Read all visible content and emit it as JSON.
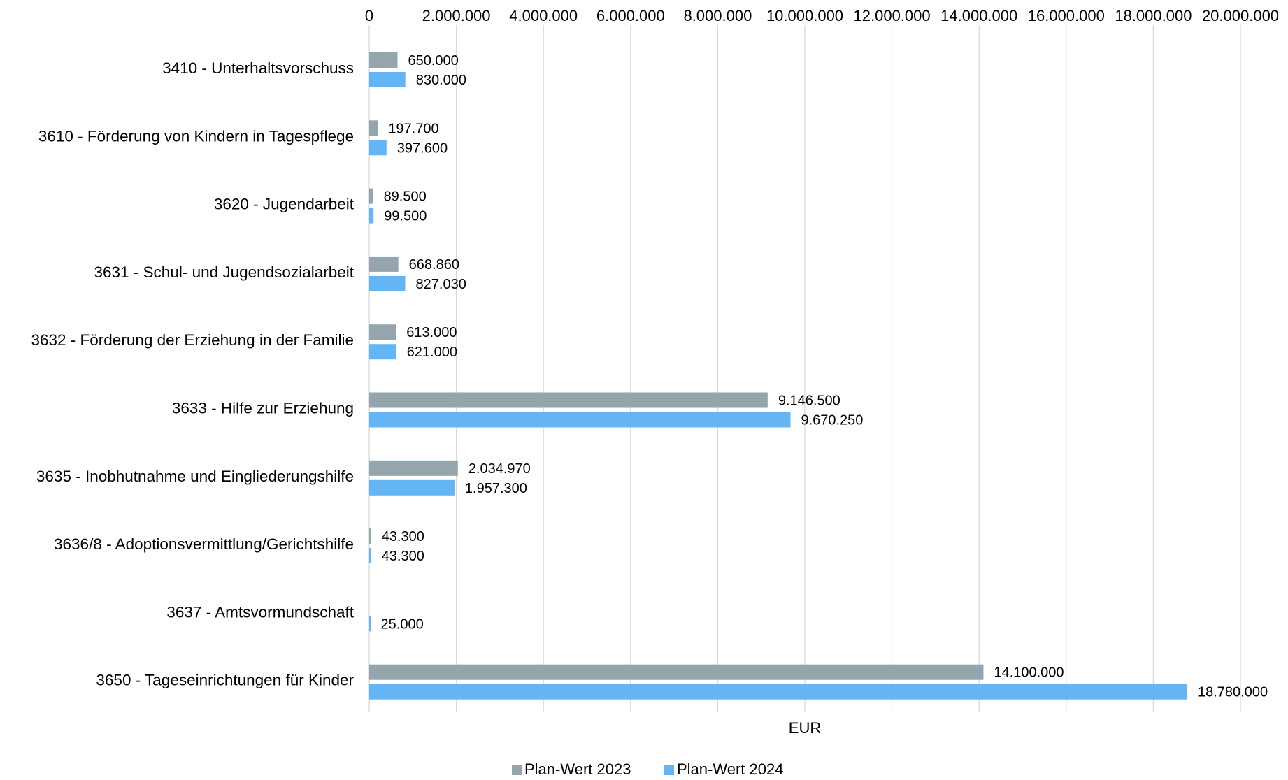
{
  "chart_data": {
    "type": "bar",
    "orientation": "horizontal",
    "categories": [
      "3410 - Unterhaltsvorschuss",
      "3610 - Förderung von Kindern in Tagespflege",
      "3620 - Jugendarbeit",
      "3631 - Schul- und Jugendsozialarbeit",
      "3632 - Förderung der Erziehung in der Familie",
      "3633 - Hilfe zur Erziehung",
      "3635 - Inobhutnahme und Eingliederungshilfe",
      "3636/8 - Adoptionsvermittlung/Gerichtshilfe",
      "3637 - Amtsvormundschaft",
      "3650 - Tageseinrichtungen für Kinder"
    ],
    "series": [
      {
        "name": "Plan-Wert 2023",
        "color": "#95a5ae",
        "values": [
          650000,
          197700,
          89500,
          668860,
          613000,
          9146500,
          2034970,
          43300,
          null,
          14100000
        ],
        "labels": [
          "650.000",
          "197.700",
          "89.500",
          "668.860",
          "613.000",
          "9.146.500",
          "2.034.970",
          "43.300",
          "",
          "14.100.000"
        ]
      },
      {
        "name": "Plan-Wert 2024",
        "color": "#63b5f4",
        "values": [
          830000,
          397600,
          99500,
          827030,
          621000,
          9670250,
          1957300,
          43300,
          25000,
          18780000
        ],
        "labels": [
          "830.000",
          "397.600",
          "99.500",
          "827.030",
          "621.000",
          "9.670.250",
          "1.957.300",
          "43.300",
          "25.000",
          "18.780.000"
        ]
      }
    ],
    "xlabel": "EUR",
    "ylabel": "",
    "title": "",
    "xlim": [
      0,
      20000000
    ],
    "x_ticks": [
      0,
      2000000,
      4000000,
      6000000,
      8000000,
      10000000,
      12000000,
      14000000,
      16000000,
      18000000,
      20000000
    ],
    "x_tick_labels": [
      "0",
      "2.000.000",
      "4.000.000",
      "6.000.000",
      "8.000.000",
      "10.000.000",
      "12.000.000",
      "14.000.000",
      "16.000.000",
      "18.000.000",
      "20.000.000"
    ],
    "x_axis_position": "top",
    "grid": true,
    "grid_color": "#d9d9d9",
    "legend_position": "bottom-center"
  }
}
